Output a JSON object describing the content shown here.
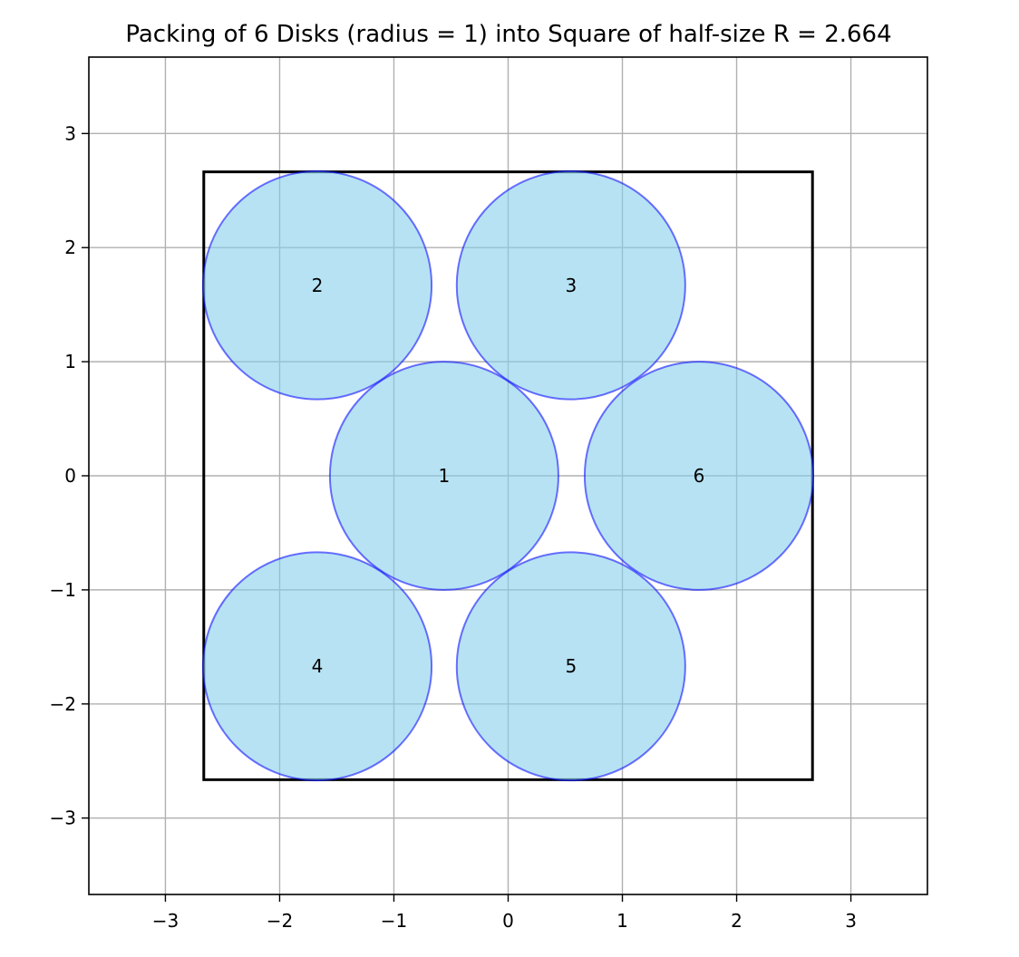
{
  "chart_data": {
    "type": "scatter",
    "title": "Packing of 6 Disks (radius = 1) into Square of half-size R = 2.664",
    "xlabel": "",
    "ylabel": "",
    "xlim": [
      -3.67,
      3.67
    ],
    "ylim": [
      -3.67,
      3.67
    ],
    "grid": true,
    "xticks": [
      -3,
      -2,
      -1,
      0,
      1,
      2,
      3
    ],
    "yticks": [
      -3,
      -2,
      -1,
      0,
      1,
      2,
      3
    ],
    "xtick_labels": [
      "−3",
      "−2",
      "−1",
      "0",
      "1",
      "2",
      "3"
    ],
    "ytick_labels": [
      "−3",
      "−2",
      "−1",
      "0",
      "1",
      "2",
      "3"
    ],
    "disk_radius": 1,
    "square_half_size": 2.664,
    "disks": [
      {
        "label": "1",
        "x": -0.56,
        "y": 0.0
      },
      {
        "label": "2",
        "x": -1.67,
        "y": 1.67
      },
      {
        "label": "3",
        "x": 0.55,
        "y": 1.67
      },
      {
        "label": "4",
        "x": -1.67,
        "y": -1.67
      },
      {
        "label": "5",
        "x": 0.55,
        "y": -1.67
      },
      {
        "label": "6",
        "x": 1.67,
        "y": 0.0
      }
    ],
    "colors": {
      "disk_fill": "#87ceeb",
      "disk_edge": "#0000ff",
      "square_edge": "#000000",
      "grid": "#b0b0b0"
    }
  }
}
